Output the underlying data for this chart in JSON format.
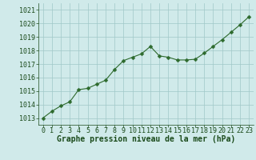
{
  "x": [
    0,
    1,
    2,
    3,
    4,
    5,
    6,
    7,
    8,
    9,
    10,
    11,
    12,
    13,
    14,
    15,
    16,
    17,
    18,
    19,
    20,
    21,
    22,
    23
  ],
  "y": [
    1013.0,
    1013.5,
    1013.9,
    1014.2,
    1015.1,
    1015.2,
    1015.5,
    1015.8,
    1016.6,
    1017.25,
    1017.5,
    1017.75,
    1018.3,
    1017.6,
    1017.5,
    1017.3,
    1017.3,
    1017.35,
    1017.8,
    1018.3,
    1018.8,
    1019.35,
    1019.9,
    1020.5
  ],
  "line_color": "#2d6a2d",
  "marker": "D",
  "marker_size": 2.5,
  "bg_color": "#d0eaea",
  "grid_color": "#a0c8c8",
  "xlabel": "Graphe pression niveau de la mer (hPa)",
  "xlabel_color": "#1a4a1a",
  "xlabel_fontsize": 7,
  "tick_color": "#1a4a1a",
  "tick_fontsize": 6,
  "ylim": [
    1012.5,
    1021.5
  ],
  "yticks": [
    1013,
    1014,
    1015,
    1016,
    1017,
    1018,
    1019,
    1020,
    1021
  ],
  "xlim": [
    -0.5,
    23.5
  ],
  "xticks": [
    0,
    1,
    2,
    3,
    4,
    5,
    6,
    7,
    8,
    9,
    10,
    11,
    12,
    13,
    14,
    15,
    16,
    17,
    18,
    19,
    20,
    21,
    22,
    23
  ]
}
